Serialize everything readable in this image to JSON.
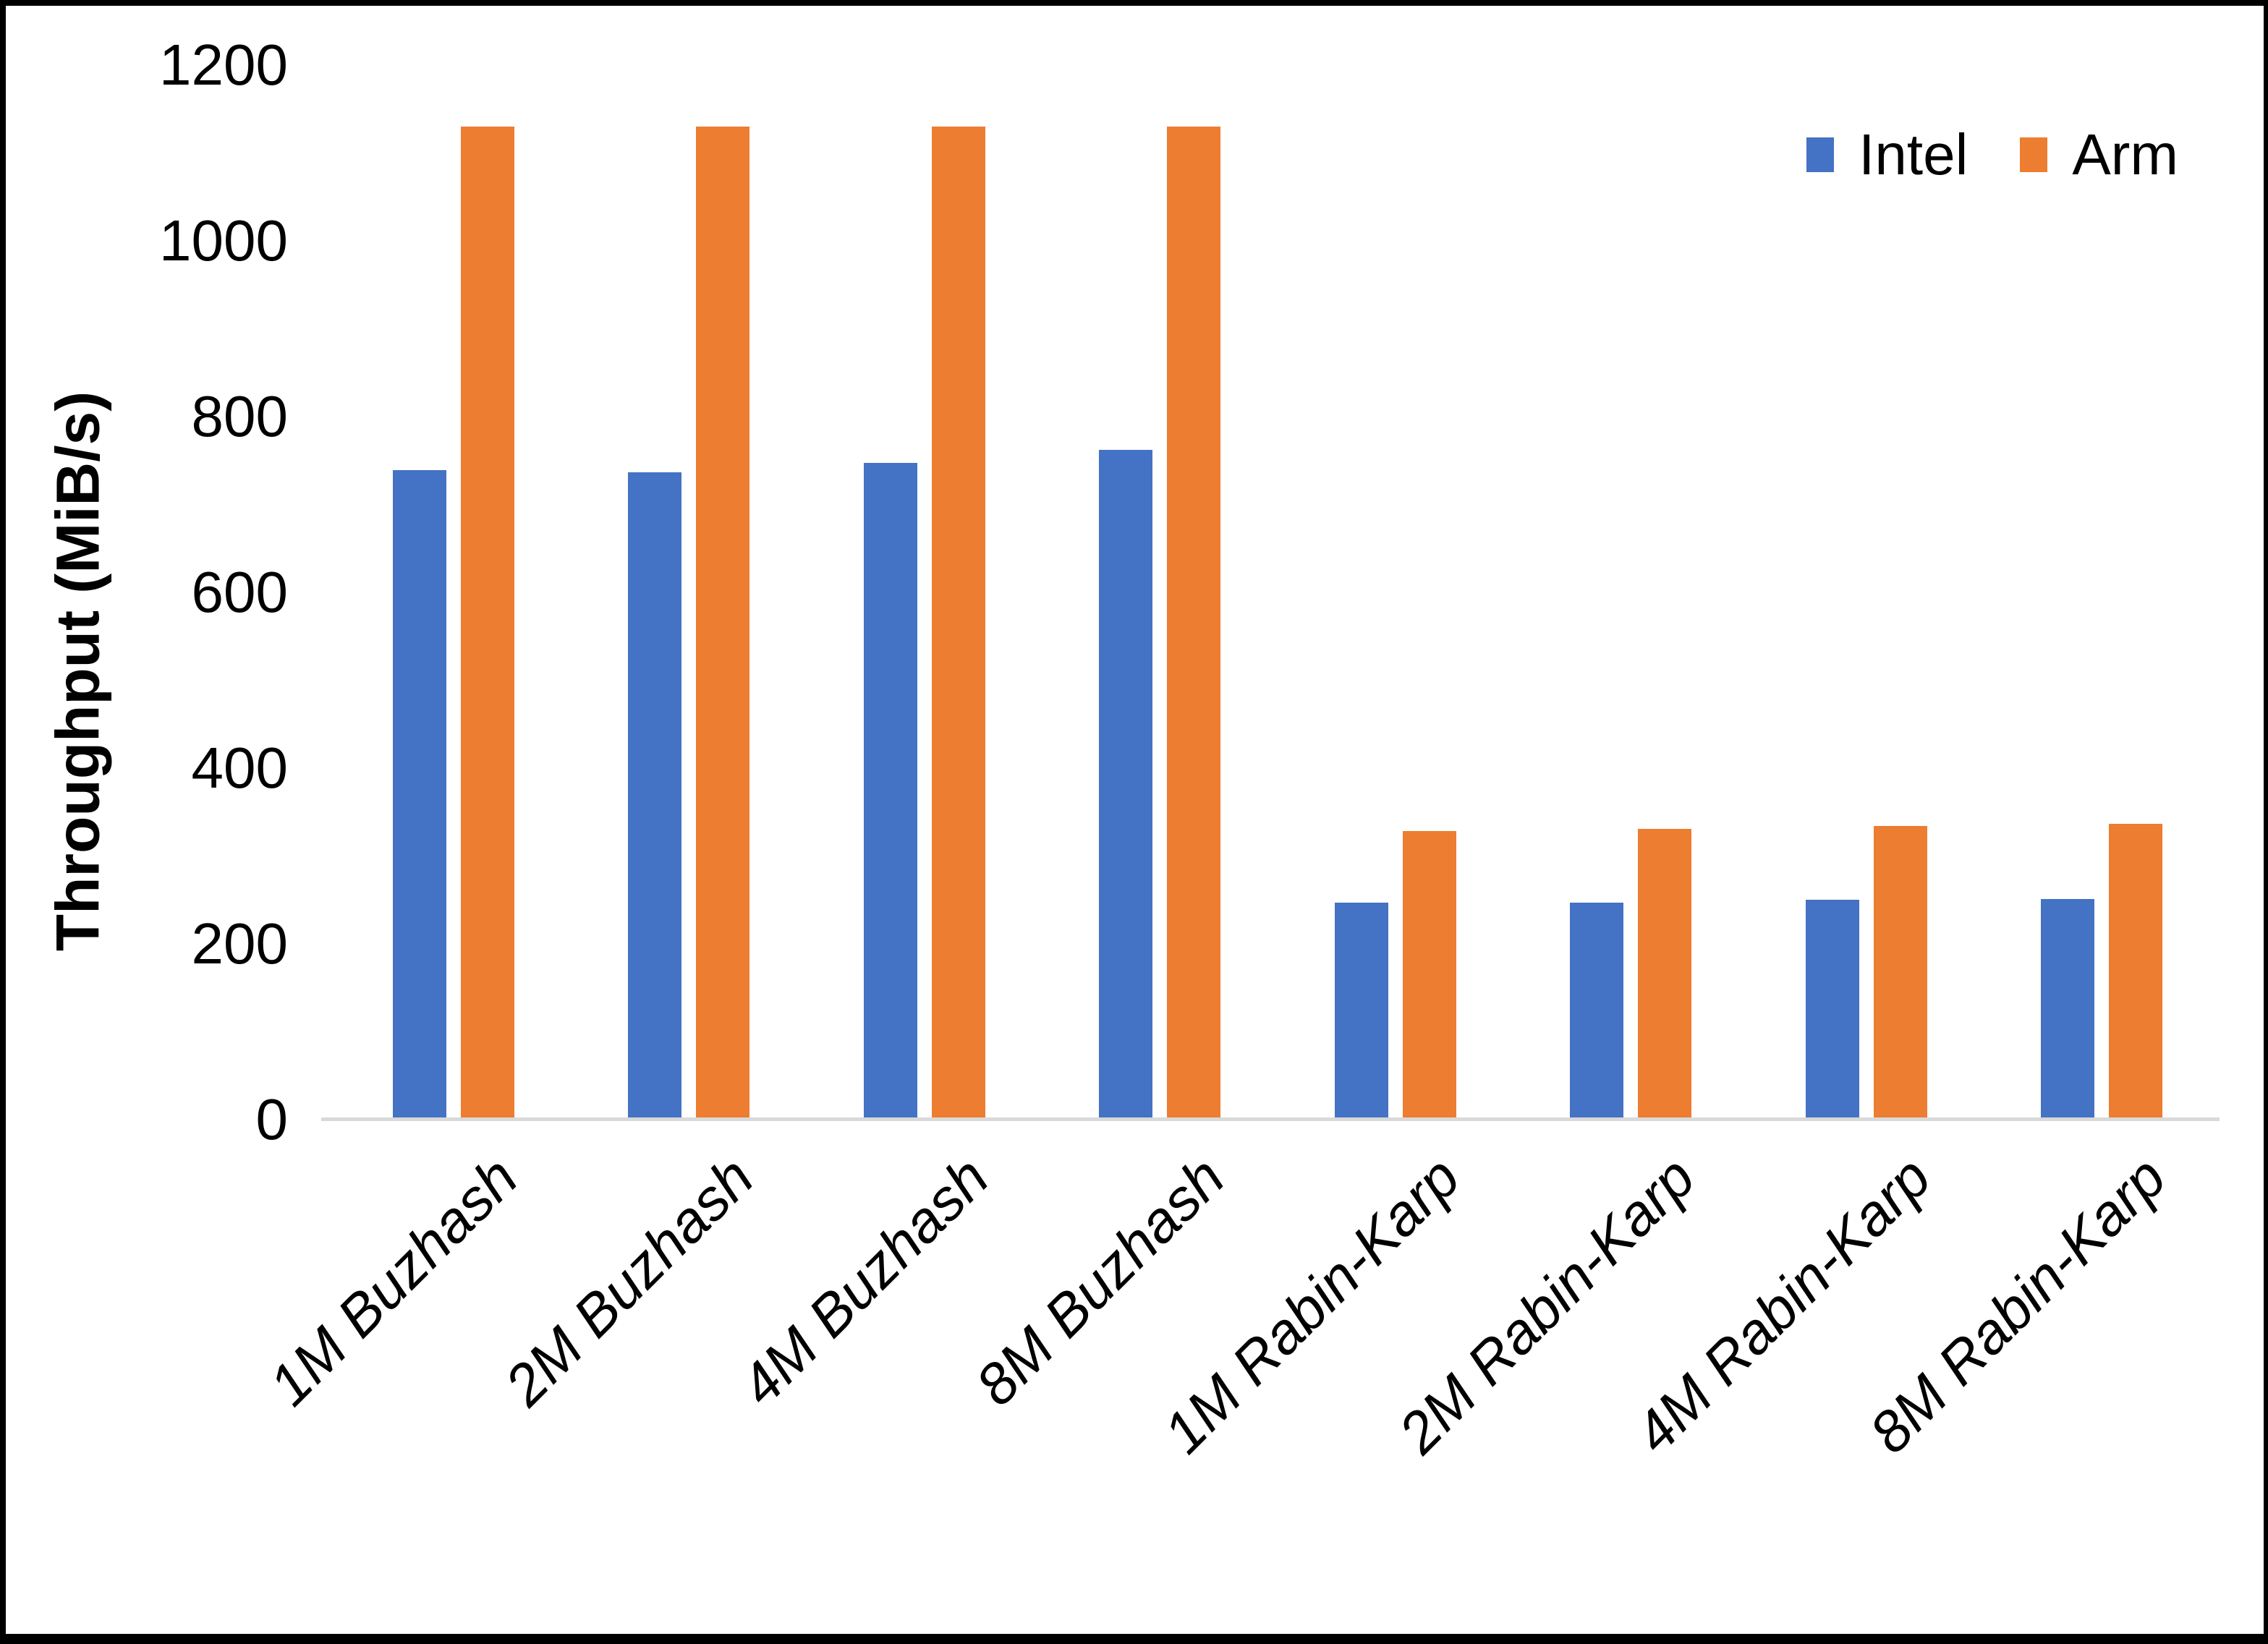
{
  "page": {
    "background": "#ffffff",
    "border_color": "#000000"
  },
  "chart_data": {
    "type": "bar",
    "title": "",
    "xlabel": "",
    "ylabel": "Throughput (MiB/s)",
    "categories": [
      "1M Buzhash",
      "2M Buzhash",
      "4M Buzhash",
      "8M Buzhash",
      "1M Rabin-Karp",
      "2M Rabin-Karp",
      "4M Rabin-Karp",
      "8M Rabin-Karp"
    ],
    "series": [
      {
        "name": "Intel",
        "color": "#4472C4",
        "values": [
          739,
          737,
          747,
          762,
          247,
          247,
          250,
          251
        ]
      },
      {
        "name": "Arm",
        "color": "#ED7D31",
        "values": [
          1130,
          1130,
          1130,
          1130,
          328,
          331,
          334,
          337
        ]
      }
    ],
    "ylim": [
      0,
      1200
    ],
    "yticks": [
      0,
      200,
      400,
      600,
      800,
      1000,
      1200
    ],
    "grid": false,
    "legend_position": "top-right",
    "axis_line_color": "#d9d9d9",
    "category_label_rotation_deg": -45,
    "text_color": "#000000"
  }
}
